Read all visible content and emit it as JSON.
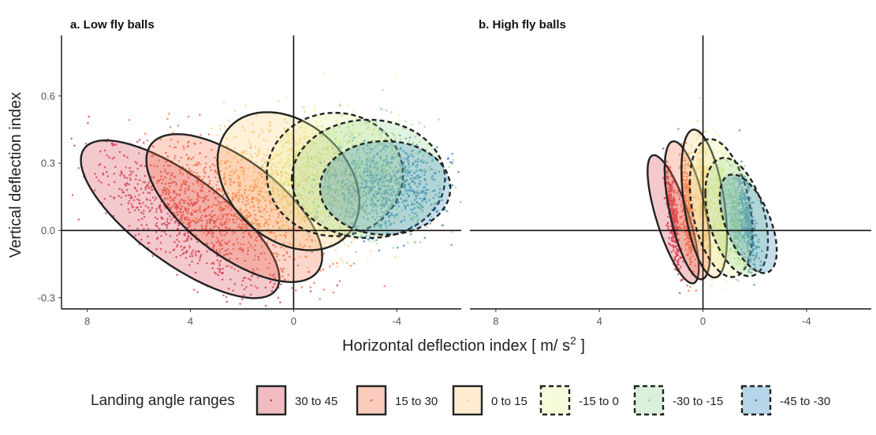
{
  "chart_data": [
    {
      "type": "scatter",
      "panel_title": "a. Low fly balls",
      "xlabel": "Horizontal deflection index [ m/ s2 ]",
      "ylabel": "Vertical deflection index",
      "xlim": [
        9,
        -6.5
      ],
      "ylim": [
        -0.35,
        0.87
      ],
      "x_ticks": [
        "8",
        "4",
        "0",
        "-4"
      ],
      "y_ticks": [
        "0.6",
        "0.3",
        "0.0",
        "-0.3"
      ],
      "x_reverse": true,
      "reference_lines": {
        "x": 0,
        "y": 0
      },
      "series": [
        {
          "name": "30 to 45",
          "color": "#d53e4f",
          "center": [
            4.4,
            0.05
          ],
          "ellipse": {
            "cx": 4.4,
            "cy": 0.05,
            "sx": 1.75,
            "sy": 0.16,
            "corr": 0.75,
            "linestyle": "solid"
          }
        },
        {
          "name": "15 to 30",
          "color": "#f46d43",
          "center": [
            2.1,
            0.12
          ],
          "ellipse": {
            "cx": 2.3,
            "cy": 0.1,
            "sx": 1.55,
            "sy": 0.15,
            "corr": 0.65,
            "linestyle": "solid"
          }
        },
        {
          "name": "0 to 15",
          "color": "#fdcc7a",
          "center": [
            0.2,
            0.25
          ],
          "ellipse": {
            "cx": 0.2,
            "cy": 0.22,
            "sx": 1.25,
            "sy": 0.14,
            "corr": 0.3,
            "linestyle": "solid"
          }
        },
        {
          "name": "-15 to 0",
          "color": "#e6f598",
          "center": [
            -1.6,
            0.27
          ],
          "ellipse": {
            "cx": -1.6,
            "cy": 0.25,
            "sx": 1.2,
            "sy": 0.125,
            "corr": 0.0,
            "linestyle": "dashed"
          }
        },
        {
          "name": "-30 to -15",
          "color": "#99d594",
          "center": [
            -3.0,
            0.25
          ],
          "ellipse": {
            "cx": -2.9,
            "cy": 0.23,
            "sx": 1.35,
            "sy": 0.12,
            "corr": 0.0,
            "linestyle": "dashed"
          }
        },
        {
          "name": "-45 to -30",
          "color": "#3288bd",
          "center": [
            -3.6,
            0.21
          ],
          "ellipse": {
            "cx": -3.55,
            "cy": 0.19,
            "sx": 1.15,
            "sy": 0.095,
            "corr": 0.0,
            "linestyle": "dashed"
          }
        }
      ]
    },
    {
      "type": "scatter",
      "panel_title": "b. High fly balls",
      "xlim": [
        9,
        -6.5
      ],
      "ylim": [
        -0.35,
        0.87
      ],
      "x_ticks": [
        "8",
        "4",
        "0",
        "-4"
      ],
      "x_reverse": true,
      "reference_lines": {
        "x": 0,
        "y": 0
      },
      "series": [
        {
          "name": "30 to 45",
          "color": "#d53e4f",
          "center": [
            1.2,
            0.1
          ],
          "ellipse": {
            "cx": 1.15,
            "cy": 0.05,
            "sx": 0.45,
            "sy": 0.13,
            "corr": 0.75,
            "linestyle": "solid"
          }
        },
        {
          "name": "15 to 30",
          "color": "#f46d43",
          "center": [
            0.6,
            0.13
          ],
          "ellipse": {
            "cx": 0.6,
            "cy": 0.09,
            "sx": 0.4,
            "sy": 0.14,
            "corr": 0.6,
            "linestyle": "solid"
          }
        },
        {
          "name": "0 to 15",
          "color": "#fdcc7a",
          "center": [
            0.0,
            0.15
          ],
          "ellipse": {
            "cx": -0.05,
            "cy": 0.12,
            "sx": 0.4,
            "sy": 0.15,
            "corr": 0.45,
            "linestyle": "solid"
          }
        },
        {
          "name": "-15 to 0",
          "color": "#e6f598",
          "center": [
            -0.9,
            0.14
          ],
          "ellipse": {
            "cx": -0.7,
            "cy": 0.1,
            "sx": 0.55,
            "sy": 0.14,
            "corr": 0.35,
            "linestyle": "dashed"
          }
        },
        {
          "name": "-30 to -15",
          "color": "#99d594",
          "center": [
            -1.6,
            0.1
          ],
          "ellipse": {
            "cx": -1.3,
            "cy": 0.06,
            "sx": 0.55,
            "sy": 0.12,
            "corr": 0.4,
            "linestyle": "dashed"
          }
        },
        {
          "name": "-45 to -30",
          "color": "#3288bd",
          "center": [
            -2.0,
            0.05
          ],
          "ellipse": {
            "cx": -1.75,
            "cy": 0.03,
            "sx": 0.5,
            "sy": 0.1,
            "corr": 0.55,
            "linestyle": "dashed"
          }
        }
      ]
    }
  ],
  "legend": {
    "title": "Landing angle ranges",
    "position": "bottom",
    "items": [
      {
        "label": "30 to 45",
        "color": "#d53e4f",
        "linestyle": "solid"
      },
      {
        "label": "15 to 30",
        "color": "#f46d43",
        "linestyle": "solid"
      },
      {
        "label": "0 to 15",
        "color": "#fdcc7a",
        "linestyle": "solid"
      },
      {
        "label": "-15 to 0",
        "color": "#e6f598",
        "linestyle": "dashed"
      },
      {
        "label": "-30 to -15",
        "color": "#99d594",
        "linestyle": "dashed"
      },
      {
        "label": "-45 to -30",
        "color": "#3288bd",
        "linestyle": "dashed"
      }
    ]
  }
}
